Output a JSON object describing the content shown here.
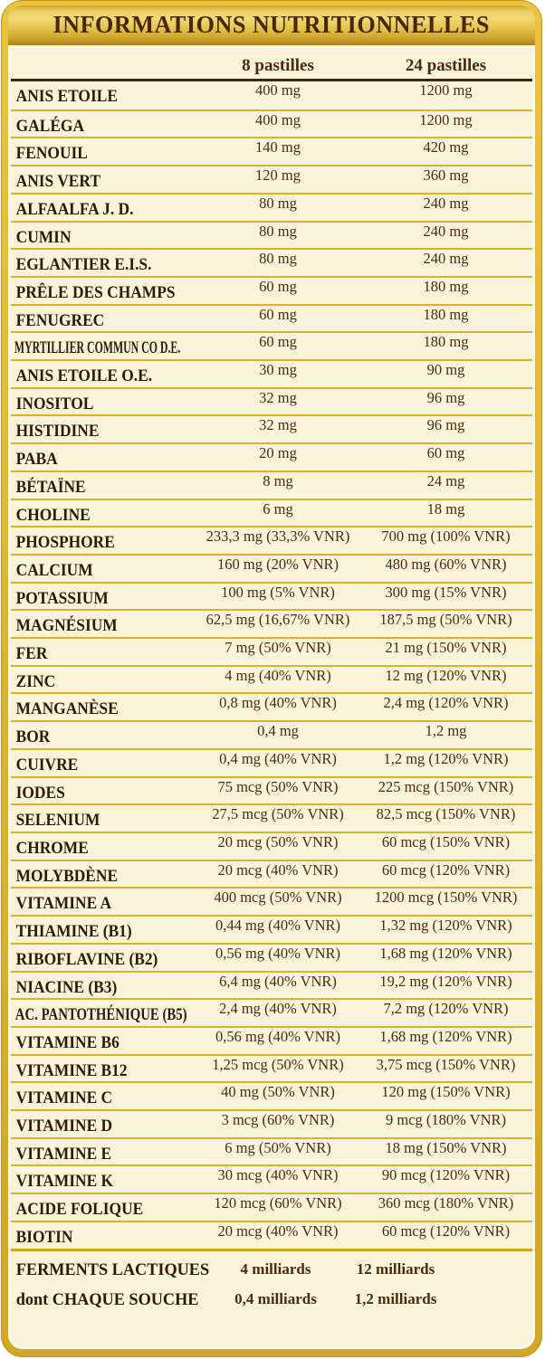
{
  "table": {
    "title": "INFORMATIONS NUTRITIONNELLES",
    "columns": [
      "8 pastilles",
      "24 pastilles"
    ],
    "rows": [
      {
        "label": "ANIS ETOILE",
        "per_8_pastilles": "400 mg",
        "per_24_pastilles": "1200 mg"
      },
      {
        "label": "GALÉGA",
        "per_8_pastilles": "400 mg",
        "per_24_pastilles": "1200 mg"
      },
      {
        "label": "FENOUIL",
        "per_8_pastilles": "140 mg",
        "per_24_pastilles": "420 mg"
      },
      {
        "label": "ANIS VERT",
        "per_8_pastilles": "120 mg",
        "per_24_pastilles": "360 mg"
      },
      {
        "label": "ALFAALFA J. D.",
        "per_8_pastilles": "80 mg",
        "per_24_pastilles": "240 mg"
      },
      {
        "label": "CUMIN",
        "per_8_pastilles": "80 mg",
        "per_24_pastilles": "240 mg"
      },
      {
        "label": "EGLANTIER E.I.S.",
        "per_8_pastilles": "80 mg",
        "per_24_pastilles": "240 mg"
      },
      {
        "label": "PRÊLE DES CHAMPS",
        "per_8_pastilles": "60 mg",
        "per_24_pastilles": "180 mg"
      },
      {
        "label": "FENUGREC",
        "per_8_pastilles": "60 mg",
        "per_24_pastilles": "180 mg"
      },
      {
        "label": "MYRTILLIER COMMUN CO D.E.",
        "per_8_pastilles": "60 mg",
        "per_24_pastilles": "180 mg"
      },
      {
        "label": "ANIS ETOILE O.E.",
        "per_8_pastilles": "30 mg",
        "per_24_pastilles": "90 mg"
      },
      {
        "label": "INOSITOL",
        "per_8_pastilles": "32 mg",
        "per_24_pastilles": "96 mg"
      },
      {
        "label": "HISTIDINE",
        "per_8_pastilles": "32 mg",
        "per_24_pastilles": "96 mg"
      },
      {
        "label": "PABA",
        "per_8_pastilles": "20 mg",
        "per_24_pastilles": "60 mg"
      },
      {
        "label": "BÉTAÏNE",
        "per_8_pastilles": "8 mg",
        "per_24_pastilles": "24 mg"
      },
      {
        "label": "CHOLINE",
        "per_8_pastilles": "6 mg",
        "per_24_pastilles": "18 mg"
      },
      {
        "label": "PHOSPHORE",
        "per_8_pastilles": "233,3 mg (33,3% VNR)",
        "per_24_pastilles": "700 mg (100% VNR)"
      },
      {
        "label": "CALCIUM",
        "per_8_pastilles": "160 mg (20% VNR)",
        "per_24_pastilles": "480 mg (60% VNR)"
      },
      {
        "label": "POTASSIUM",
        "per_8_pastilles": "100 mg (5% VNR)",
        "per_24_pastilles": "300 mg (15% VNR)"
      },
      {
        "label": "MAGNÉSIUM",
        "per_8_pastilles": "62,5 mg (16,67% VNR)",
        "per_24_pastilles": "187,5 mg (50% VNR)"
      },
      {
        "label": "FER",
        "per_8_pastilles": "7 mg (50% VNR)",
        "per_24_pastilles": "21 mg (150% VNR)"
      },
      {
        "label": "ZINC",
        "per_8_pastilles": "4 mg (40% VNR)",
        "per_24_pastilles": "12 mg (120% VNR)"
      },
      {
        "label": "MANGANÈSE",
        "per_8_pastilles": "0,8 mg (40% VNR)",
        "per_24_pastilles": "2,4 mg (120% VNR)"
      },
      {
        "label": "BOR",
        "per_8_pastilles": "0,4 mg",
        "per_24_pastilles": "1,2 mg"
      },
      {
        "label": "CUIVRE",
        "per_8_pastilles": "0,4 mg (40% VNR)",
        "per_24_pastilles": "1,2 mg (120% VNR)"
      },
      {
        "label": "IODES",
        "per_8_pastilles": "75 mcg (50% VNR)",
        "per_24_pastilles": "225 mcg (150% VNR)"
      },
      {
        "label": "SELENIUM",
        "per_8_pastilles": "27,5 mcg (50% VNR)",
        "per_24_pastilles": "82,5 mcg (150% VNR)"
      },
      {
        "label": "CHROME",
        "per_8_pastilles": "20 mcg (50% VNR)",
        "per_24_pastilles": "60 mcg (150% VNR)"
      },
      {
        "label": "MOLYBDÈNE",
        "per_8_pastilles": "20 mcg (40% VNR)",
        "per_24_pastilles": "60 mcg (120% VNR)"
      },
      {
        "label": "VITAMINE A",
        "per_8_pastilles": "400 mcg (50% VNR)",
        "per_24_pastilles": "1200 mcg (150% VNR)"
      },
      {
        "label": "THIAMINE (B1)",
        "per_8_pastilles": "0,44 mg (40% VNR)",
        "per_24_pastilles": "1,32 mg (120% VNR)"
      },
      {
        "label": "RIBOFLAVINE (B2)",
        "per_8_pastilles": "0,56 mg (40% VNR)",
        "per_24_pastilles": "1,68 mg (120% VNR)"
      },
      {
        "label": "NIACINE (B3)",
        "per_8_pastilles": "6,4 mg (40% VNR)",
        "per_24_pastilles": "19,2 mg (120% VNR)"
      },
      {
        "label": "AC. PANTOTHÉNIQUE (B5)",
        "per_8_pastilles": "2,4 mg (40% VNR)",
        "per_24_pastilles": "7,2 mg (120% VNR)"
      },
      {
        "label": "VITAMINE B6",
        "per_8_pastilles": "0,56 mg (40% VNR)",
        "per_24_pastilles": "1,68 mg (120% VNR)"
      },
      {
        "label": "VITAMINE B12",
        "per_8_pastilles": "1,25 mcg (50% VNR)",
        "per_24_pastilles": "3,75 mcg (150% VNR)"
      },
      {
        "label": "VITAMINE C",
        "per_8_pastilles": "40 mg (50% VNR)",
        "per_24_pastilles": "120 mg (150% VNR)"
      },
      {
        "label": "VITAMINE D",
        "per_8_pastilles": "3 mcg (60% VNR)",
        "per_24_pastilles": "9 mcg (180% VNR)"
      },
      {
        "label": "VITAMINE E",
        "per_8_pastilles": "6 mg (50% VNR)",
        "per_24_pastilles": "18 mg (150% VNR)"
      },
      {
        "label": "VITAMINE K",
        "per_8_pastilles": "30 mcg (40% VNR)",
        "per_24_pastilles": "90 mcg (120% VNR)"
      },
      {
        "label": "ACIDE FOLIQUE",
        "per_8_pastilles": "120 mcg (60% VNR)",
        "per_24_pastilles": "360 mcg (180% VNR)"
      },
      {
        "label": "BIOTIN",
        "per_8_pastilles": "20 mcg (40% VNR)",
        "per_24_pastilles": "60 mcg (120% VNR)"
      }
    ],
    "footer_rows": [
      {
        "label": "FERMENTS LACTIQUES",
        "per_8_pastilles": "4 milliards",
        "per_24_pastilles": "12 milliards"
      },
      {
        "label": "dont CHAQUE SOUCHE",
        "per_8_pastilles": "0,4 milliards",
        "per_24_pastilles": "1,2 milliards"
      }
    ],
    "colors": {
      "frame_gold": "#ddb52e",
      "banner_gold_light": "#f2da78",
      "banner_gold_dark": "#b68e1e",
      "background_cream": "#fbf4da",
      "separator_gold": "#dcb22c",
      "header_rule_brown": "#40280d",
      "label_text": "#2e1a06",
      "value_text": "#4b2b0e",
      "title_text": "#482708"
    }
  }
}
